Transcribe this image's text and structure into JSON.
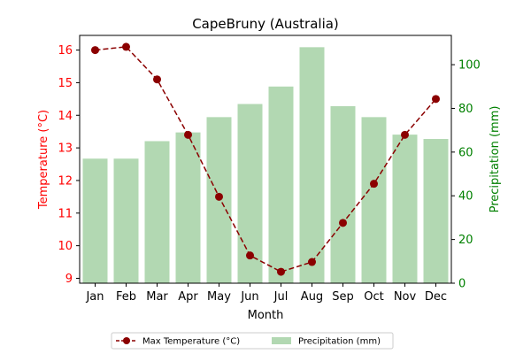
{
  "chart_data": {
    "type": "bar+line",
    "title": "CapeBruny (Australia)",
    "xlabel": "Month",
    "ylabel_left": "Temperature (°C)",
    "ylabel_right": "Precipitation (mm)",
    "categories": [
      "Jan",
      "Feb",
      "Mar",
      "Apr",
      "May",
      "Jun",
      "Jul",
      "Aug",
      "Sep",
      "Oct",
      "Nov",
      "Dec"
    ],
    "series": [
      {
        "name": "Max Temperature (°C)",
        "kind": "line",
        "axis": "left",
        "values": [
          16.0,
          16.1,
          15.1,
          13.4,
          11.5,
          9.7,
          9.2,
          9.5,
          10.7,
          11.9,
          13.4,
          14.5
        ]
      },
      {
        "name": "Precipitation (mm)",
        "kind": "bar",
        "axis": "right",
        "values": [
          57,
          57,
          65,
          69,
          76,
          82,
          90,
          108,
          81,
          76,
          68,
          66
        ]
      }
    ],
    "ylim_left": [
      8.85,
      16.45
    ],
    "ylim_right": [
      0,
      113.4
    ],
    "yticks_left": [
      9,
      10,
      11,
      12,
      13,
      14,
      15,
      16
    ],
    "yticks_right": [
      0,
      20,
      40,
      60,
      80,
      100
    ],
    "legend_position": "bottom-center",
    "colors": {
      "temperature": "#8b0000",
      "precipitation": "#b2d8b2",
      "left_axis": "#ff0000",
      "right_axis": "#008000",
      "text": "#000000"
    }
  }
}
